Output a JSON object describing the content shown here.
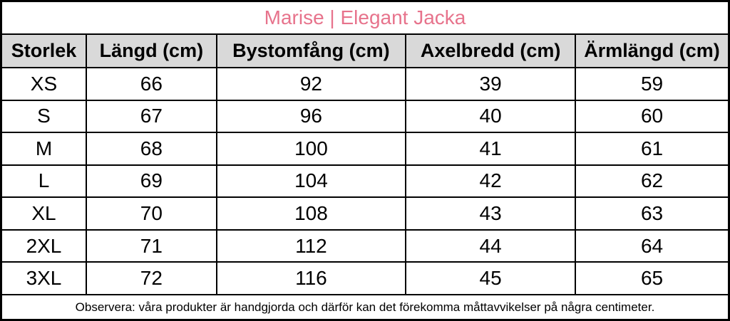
{
  "chart_data": {
    "type": "table",
    "title": "Marise | Elegant Jacka",
    "columns": [
      "Storlek",
      "Längd (cm)",
      "Bystomfång (cm)",
      "Axelbredd (cm)",
      "Ärmlängd (cm)"
    ],
    "rows": [
      [
        "XS",
        "66",
        "92",
        "39",
        "59"
      ],
      [
        "S",
        "67",
        "96",
        "40",
        "60"
      ],
      [
        "M",
        "68",
        "100",
        "41",
        "61"
      ],
      [
        "L",
        "69",
        "104",
        "42",
        "62"
      ],
      [
        "XL",
        "70",
        "108",
        "43",
        "63"
      ],
      [
        "2XL",
        "71",
        "112",
        "44",
        "64"
      ],
      [
        "3XL",
        "72",
        "116",
        "45",
        "65"
      ]
    ],
    "note": "Observera: våra produkter är handgjorda och därför kan det förekomma måttavvikelser på några centimeter."
  },
  "colors": {
    "title_pink": "#e7738c",
    "header_bg": "#d9d9d9",
    "border": "#000000",
    "cell_bg": "#ffffff"
  }
}
